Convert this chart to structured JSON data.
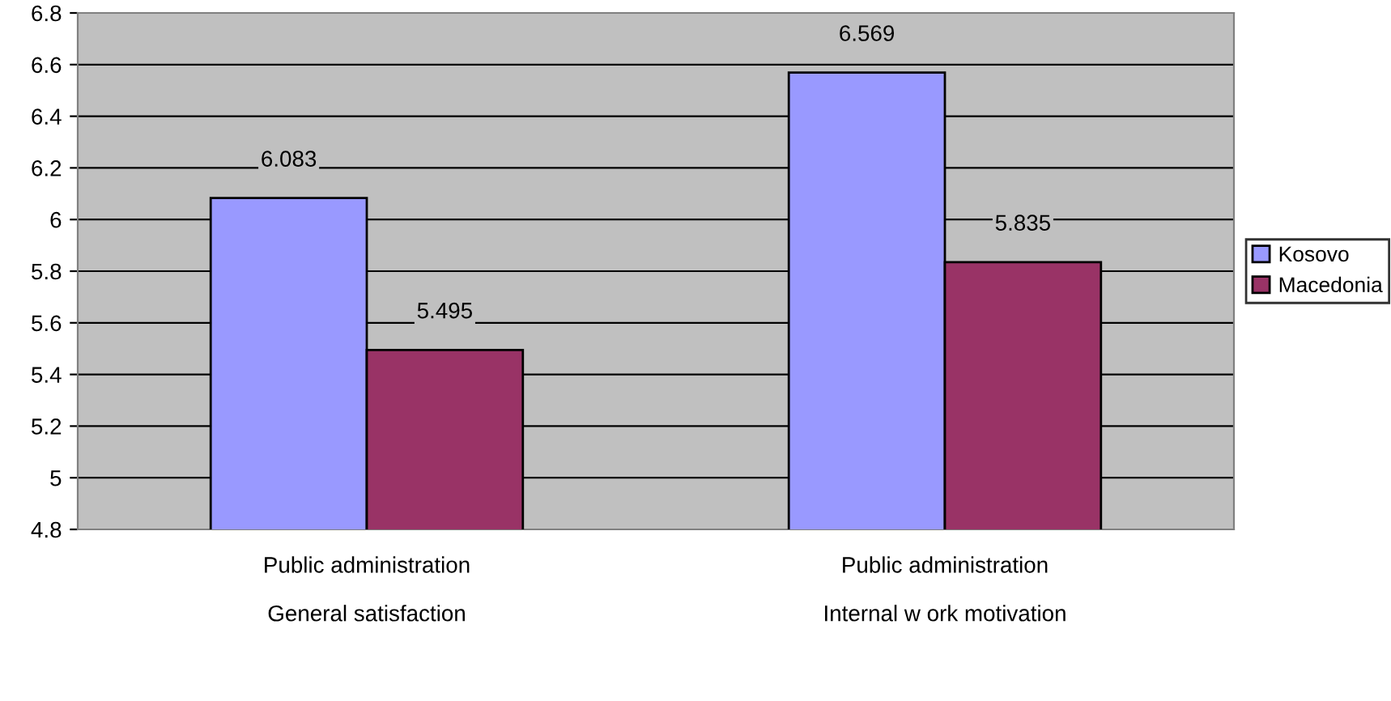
{
  "chart_data": {
    "type": "bar",
    "categories": [
      "Public administration\n\nGeneral satisfaction",
      "Public administration\n\nInternal w ork motivation"
    ],
    "series": [
      {
        "name": "Kosovo",
        "color": "#9999ff",
        "values": [
          6.083,
          6.569
        ]
      },
      {
        "name": "Macedonia",
        "color": "#993366",
        "values": [
          5.495,
          5.835
        ]
      }
    ],
    "ylim": [
      4.8,
      6.8
    ],
    "yticks": [
      4.8,
      5,
      5.2,
      5.4,
      5.6,
      5.8,
      6,
      6.2,
      6.4,
      6.6,
      6.8
    ],
    "grid": "y",
    "legend": "right",
    "data_labels": true
  }
}
